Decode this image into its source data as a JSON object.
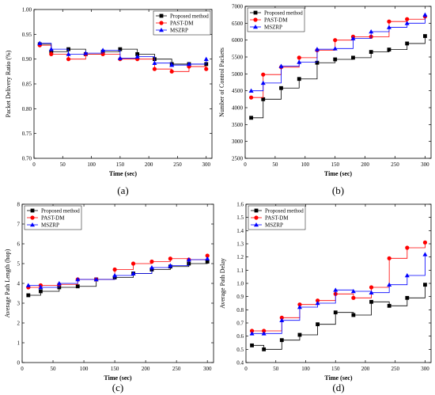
{
  "chart_data": [
    {
      "type": "line",
      "panel_label": "(a)",
      "xlabel": "Time (sec)",
      "ylabel": "Packet Delivery Ratio (%)",
      "xlim": [
        0,
        310
      ],
      "ylim": [
        0.7,
        1.0
      ],
      "xticks": [
        0,
        50,
        100,
        150,
        200,
        250,
        300
      ],
      "yticks": [
        0.7,
        0.75,
        0.8,
        0.85,
        0.9,
        0.95,
        1.0
      ],
      "ytick_labels": [
        "0.70",
        "0.75",
        "0.80",
        "0.85",
        "0.90",
        "0.95",
        "1.00"
      ],
      "grid": false,
      "legend_position": "top-right",
      "x": [
        10,
        30,
        60,
        90,
        120,
        150,
        180,
        210,
        240,
        270,
        300
      ],
      "series": [
        {
          "name": "Proposed method",
          "color": "#000000",
          "marker": "square",
          "values": [
            0.93,
            0.915,
            0.92,
            0.91,
            0.915,
            0.92,
            0.91,
            0.9,
            0.89,
            0.89,
            0.89
          ]
        },
        {
          "name": "PAST-DM",
          "color": "#ff0000",
          "marker": "circle",
          "values": [
            0.928,
            0.91,
            0.9,
            0.91,
            0.91,
            0.9,
            0.9,
            0.88,
            0.875,
            0.885,
            0.88
          ]
        },
        {
          "name": "MSZRP",
          "color": "#0000ff",
          "marker": "triangle",
          "values": [
            0.932,
            0.92,
            0.91,
            0.912,
            0.918,
            0.902,
            0.905,
            0.892,
            0.888,
            0.89,
            0.9
          ]
        }
      ]
    },
    {
      "type": "line",
      "panel_label": "(b)",
      "xlabel": "Time (sec)",
      "ylabel": "Number of Control Packets",
      "xlim": [
        0,
        310
      ],
      "ylim": [
        2500,
        7000
      ],
      "xticks": [
        0,
        50,
        100,
        150,
        200,
        250,
        300
      ],
      "yticks": [
        2500,
        3000,
        3500,
        4000,
        4500,
        5000,
        5500,
        6000,
        6500,
        7000
      ],
      "ytick_labels": [
        "2500",
        "3000",
        "3500",
        "4000",
        "4500",
        "5000",
        "5500",
        "6000",
        "6500",
        "7000"
      ],
      "grid": false,
      "legend_position": "top-left",
      "x": [
        10,
        30,
        60,
        90,
        120,
        150,
        180,
        210,
        240,
        270,
        300
      ],
      "series": [
        {
          "name": "Proposed method",
          "color": "#000000",
          "marker": "square",
          "values": [
            3700,
            4250,
            4580,
            4850,
            5330,
            5430,
            5480,
            5650,
            5720,
            5900,
            6120
          ]
        },
        {
          "name": "PAST-DM",
          "color": "#ff0000",
          "marker": "circle",
          "values": [
            4300,
            4980,
            5200,
            5480,
            5700,
            6000,
            6100,
            6100,
            6550,
            6620,
            6700
          ]
        },
        {
          "name": "MSZRP",
          "color": "#0000ff",
          "marker": "triangle",
          "values": [
            4500,
            4730,
            5230,
            5350,
            5730,
            5750,
            6050,
            6250,
            6380,
            6500,
            6750
          ]
        }
      ]
    },
    {
      "type": "line",
      "panel_label": "(c)",
      "xlabel": "Time (sec)",
      "ylabel": "Average Path Length (hop)",
      "xlim": [
        0,
        310
      ],
      "ylim": [
        0,
        8
      ],
      "xticks": [
        0,
        50,
        100,
        150,
        200,
        250,
        300
      ],
      "yticks": [
        0,
        1,
        2,
        3,
        4,
        5,
        6,
        7,
        8
      ],
      "ytick_labels": [
        "0",
        "1",
        "2",
        "3",
        "4",
        "5",
        "6",
        "7",
        "8"
      ],
      "grid": false,
      "legend_position": "top-left",
      "x": [
        10,
        30,
        60,
        90,
        120,
        150,
        180,
        210,
        240,
        270,
        300
      ],
      "series": [
        {
          "name": "Proposed method",
          "color": "#000000",
          "marker": "square",
          "values": [
            3.4,
            3.6,
            3.8,
            3.85,
            4.2,
            4.3,
            4.5,
            4.7,
            4.85,
            5.0,
            5.1
          ]
        },
        {
          "name": "PAST-DM",
          "color": "#ff0000",
          "marker": "circle",
          "values": [
            3.8,
            3.9,
            3.95,
            4.2,
            4.2,
            4.7,
            5.0,
            5.1,
            5.25,
            5.2,
            5.4
          ]
        },
        {
          "name": "MSZRP",
          "color": "#0000ff",
          "marker": "triangle",
          "values": [
            3.9,
            3.8,
            4.0,
            4.2,
            4.2,
            4.4,
            4.5,
            4.8,
            4.9,
            5.2,
            5.25
          ]
        }
      ]
    },
    {
      "type": "line",
      "panel_label": "(d)",
      "xlabel": "Time (sec)",
      "ylabel": "Average Path Delay",
      "xlim": [
        0,
        310
      ],
      "ylim": [
        0.4,
        1.6
      ],
      "xticks": [
        0,
        50,
        100,
        150,
        200,
        250,
        300
      ],
      "yticks": [
        0.4,
        0.5,
        0.6,
        0.7,
        0.8,
        0.9,
        1.0,
        1.1,
        1.2,
        1.3,
        1.4,
        1.5,
        1.6
      ],
      "ytick_labels": [
        "0.4",
        "0.5",
        "0.6",
        "0.7",
        "0.8",
        "0.9",
        "1.0",
        "1.1",
        "1.2",
        "1.3",
        "1.4",
        "1.5",
        "1.6"
      ],
      "grid": false,
      "legend_position": "top-left",
      "x": [
        10,
        30,
        60,
        90,
        120,
        150,
        180,
        210,
        240,
        270,
        300
      ],
      "series": [
        {
          "name": "Proposed method",
          "color": "#000000",
          "marker": "square",
          "values": [
            0.53,
            0.5,
            0.57,
            0.61,
            0.69,
            0.78,
            0.76,
            0.86,
            0.83,
            0.89,
            0.99
          ]
        },
        {
          "name": "PAST-DM",
          "color": "#ff0000",
          "marker": "circle",
          "values": [
            0.64,
            0.64,
            0.74,
            0.84,
            0.87,
            0.92,
            0.89,
            0.97,
            1.19,
            1.27,
            1.31
          ]
        },
        {
          "name": "MSZRP",
          "color": "#0000ff",
          "marker": "triangle",
          "values": [
            0.62,
            0.62,
            0.72,
            0.82,
            0.85,
            0.95,
            0.94,
            0.93,
            0.99,
            1.06,
            1.22
          ]
        }
      ]
    }
  ]
}
